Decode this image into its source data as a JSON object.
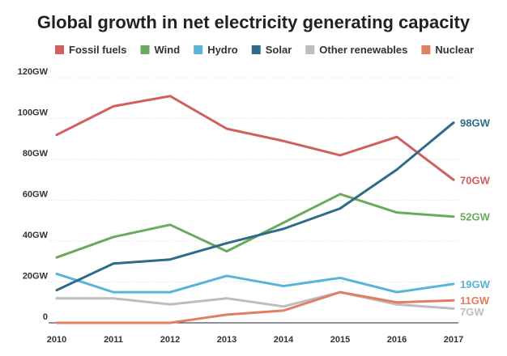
{
  "chart_data": {
    "type": "line",
    "title": "Global growth in net electricity generating capacity",
    "x": [
      "2010",
      "2011",
      "2012",
      "2013",
      "2014",
      "2015",
      "2016",
      "2017"
    ],
    "ylim": [
      0,
      120
    ],
    "y_ticks": [
      "0",
      "20GW",
      "40GW",
      "60GW",
      "80GW",
      "100GW",
      "120GW"
    ],
    "grid": true,
    "legend_placement": "top",
    "series": [
      {
        "name": "Fossil fuels",
        "color": "#d0605e",
        "values": [
          92,
          106,
          111,
          95,
          89,
          82,
          91,
          70
        ],
        "end_label": "70GW"
      },
      {
        "name": "Wind",
        "color": "#6aaa5e",
        "values": [
          32,
          42,
          48,
          35,
          49,
          63,
          54,
          52
        ],
        "end_label": "52GW"
      },
      {
        "name": "Hydro",
        "color": "#5ab4d8",
        "values": [
          24,
          15,
          15,
          23,
          18,
          22,
          15,
          19
        ],
        "end_label": "19GW"
      },
      {
        "name": "Solar",
        "color": "#2f6b88",
        "values": [
          16,
          29,
          31,
          39,
          46,
          56,
          75,
          98
        ],
        "end_label": "98GW"
      },
      {
        "name": "Other renewables",
        "color": "#bdbdbd",
        "values": [
          12,
          12,
          9,
          12,
          8,
          15,
          9,
          7
        ],
        "end_label": "7GW"
      },
      {
        "name": "Nuclear",
        "color": "#e08060",
        "values": [
          0,
          0,
          0,
          4,
          6,
          15,
          10,
          11
        ],
        "end_label": "11GW"
      }
    ]
  }
}
